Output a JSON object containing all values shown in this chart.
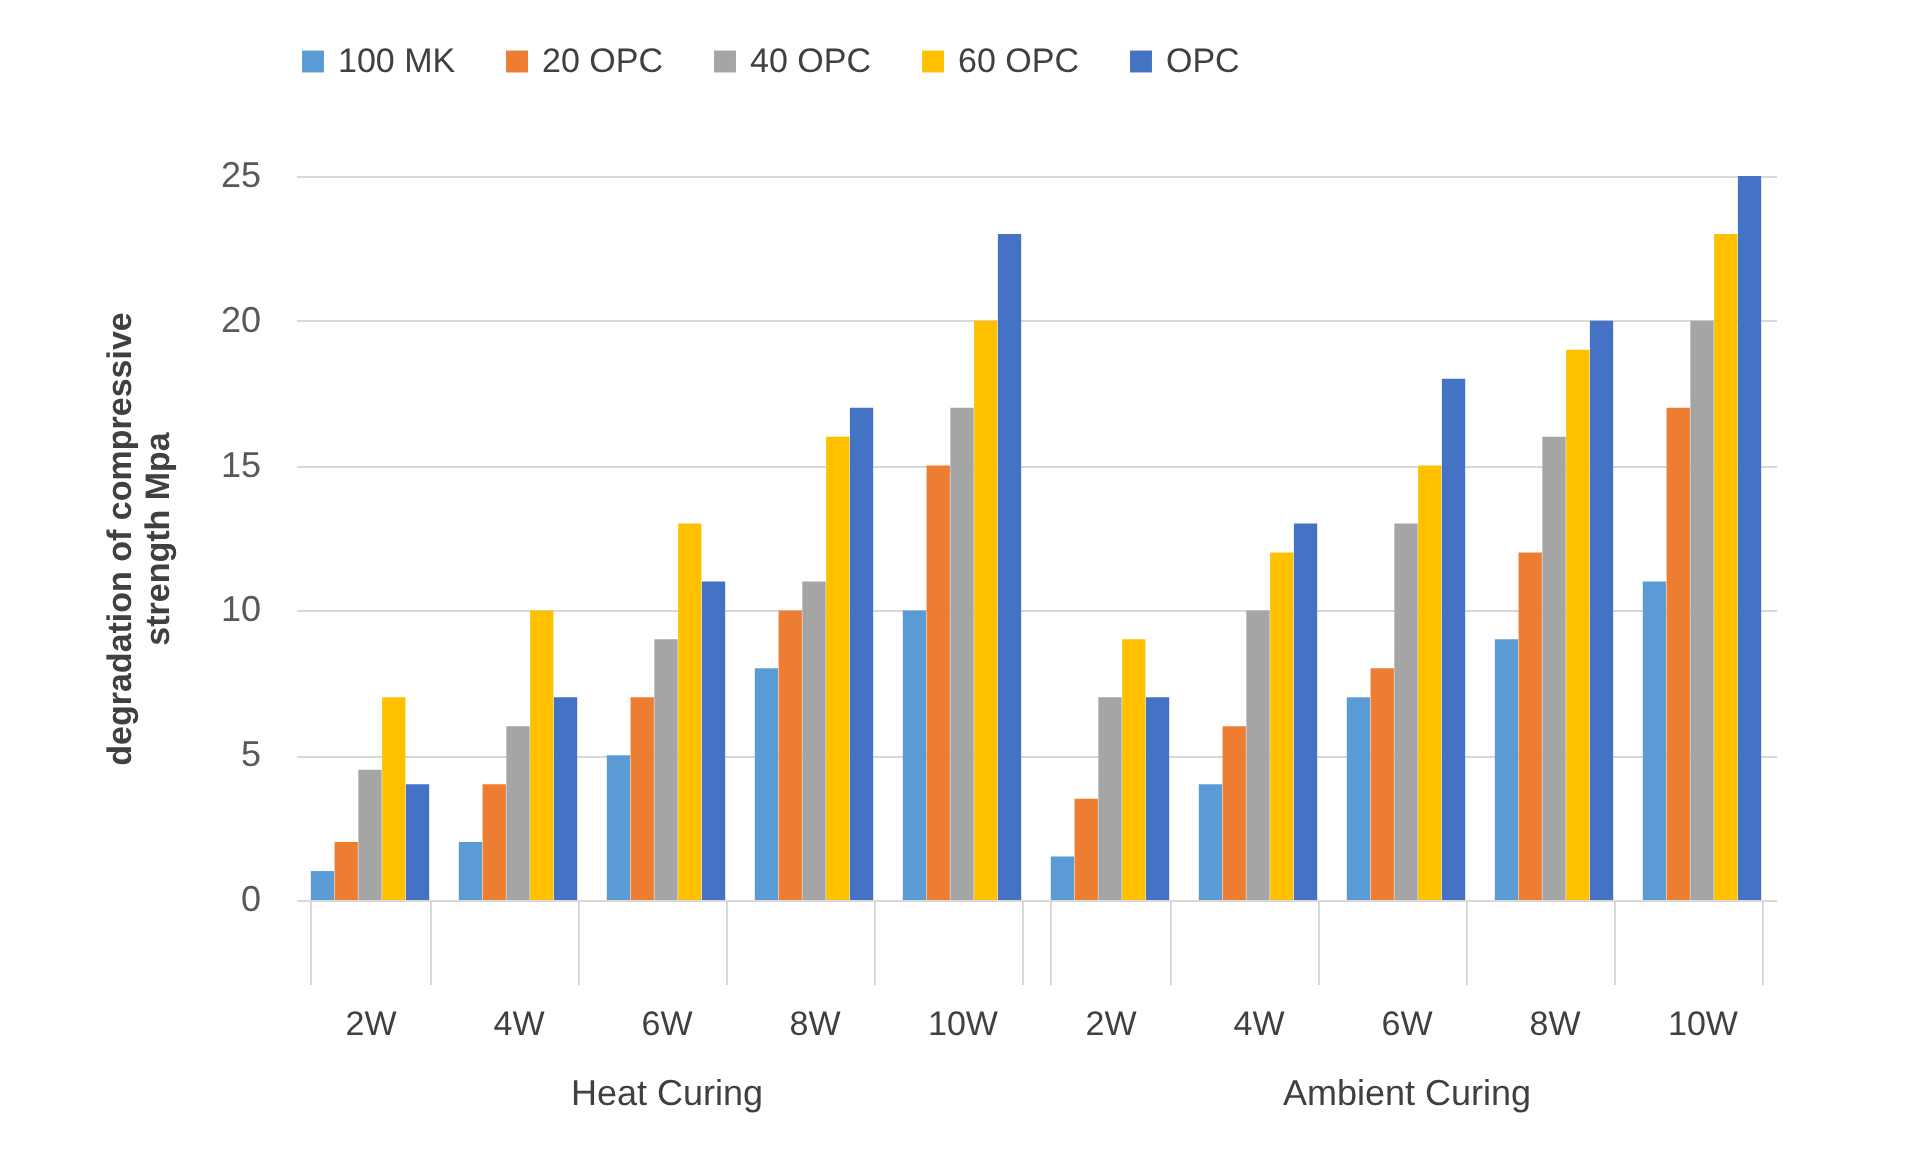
{
  "chart_data": [
    {
      "type": "bar",
      "xlabel": "Heat Curing",
      "ylabel": "degradation of compressive strength Mpa",
      "categories": [
        "2W",
        "4W",
        "6W",
        "8W",
        "10W"
      ],
      "ylim": [
        0,
        25
      ],
      "yticks": [
        0,
        5,
        10,
        15,
        20,
        25
      ],
      "grid": "y",
      "legend": "top",
      "series": [
        {
          "name": "100 MK",
          "color": "#5b9bd5",
          "values": [
            1,
            2,
            5,
            8,
            10
          ]
        },
        {
          "name": "20 OPC",
          "color": "#ed7d31",
          "values": [
            2,
            4,
            7,
            10,
            15
          ]
        },
        {
          "name": "40 OPC",
          "color": "#a5a5a5",
          "values": [
            4.5,
            6,
            9,
            11,
            17
          ]
        },
        {
          "name": "60 OPC",
          "color": "#ffc000",
          "values": [
            7,
            10,
            13,
            16,
            20
          ]
        },
        {
          "name": "OPC",
          "color": "#4472c4",
          "values": [
            4,
            7,
            11,
            17,
            23
          ]
        }
      ]
    },
    {
      "type": "bar",
      "xlabel": "Ambient Curing",
      "categories": [
        "2W",
        "4W",
        "6W",
        "8W",
        "10W"
      ],
      "ylim": [
        0,
        25
      ],
      "yticks": [
        0,
        5,
        10,
        15,
        20,
        25
      ],
      "grid": "y",
      "legend": "top",
      "tick_labels": "x",
      "series": [
        {
          "name": "100 MK",
          "color": "#5b9bd5",
          "values": [
            1.5,
            4,
            7,
            9,
            11
          ]
        },
        {
          "name": "20 OPC",
          "color": "#ed7d31",
          "values": [
            3.5,
            6,
            8,
            12,
            17
          ]
        },
        {
          "name": "40 OPC",
          "color": "#a5a5a5",
          "values": [
            7,
            10,
            13,
            16,
            20
          ]
        },
        {
          "name": "60 OPC",
          "color": "#ffc000",
          "values": [
            9,
            12,
            15,
            19,
            23
          ]
        },
        {
          "name": "OPC",
          "color": "#4472c4",
          "values": [
            7,
            13,
            18,
            20,
            25
          ]
        }
      ]
    }
  ]
}
